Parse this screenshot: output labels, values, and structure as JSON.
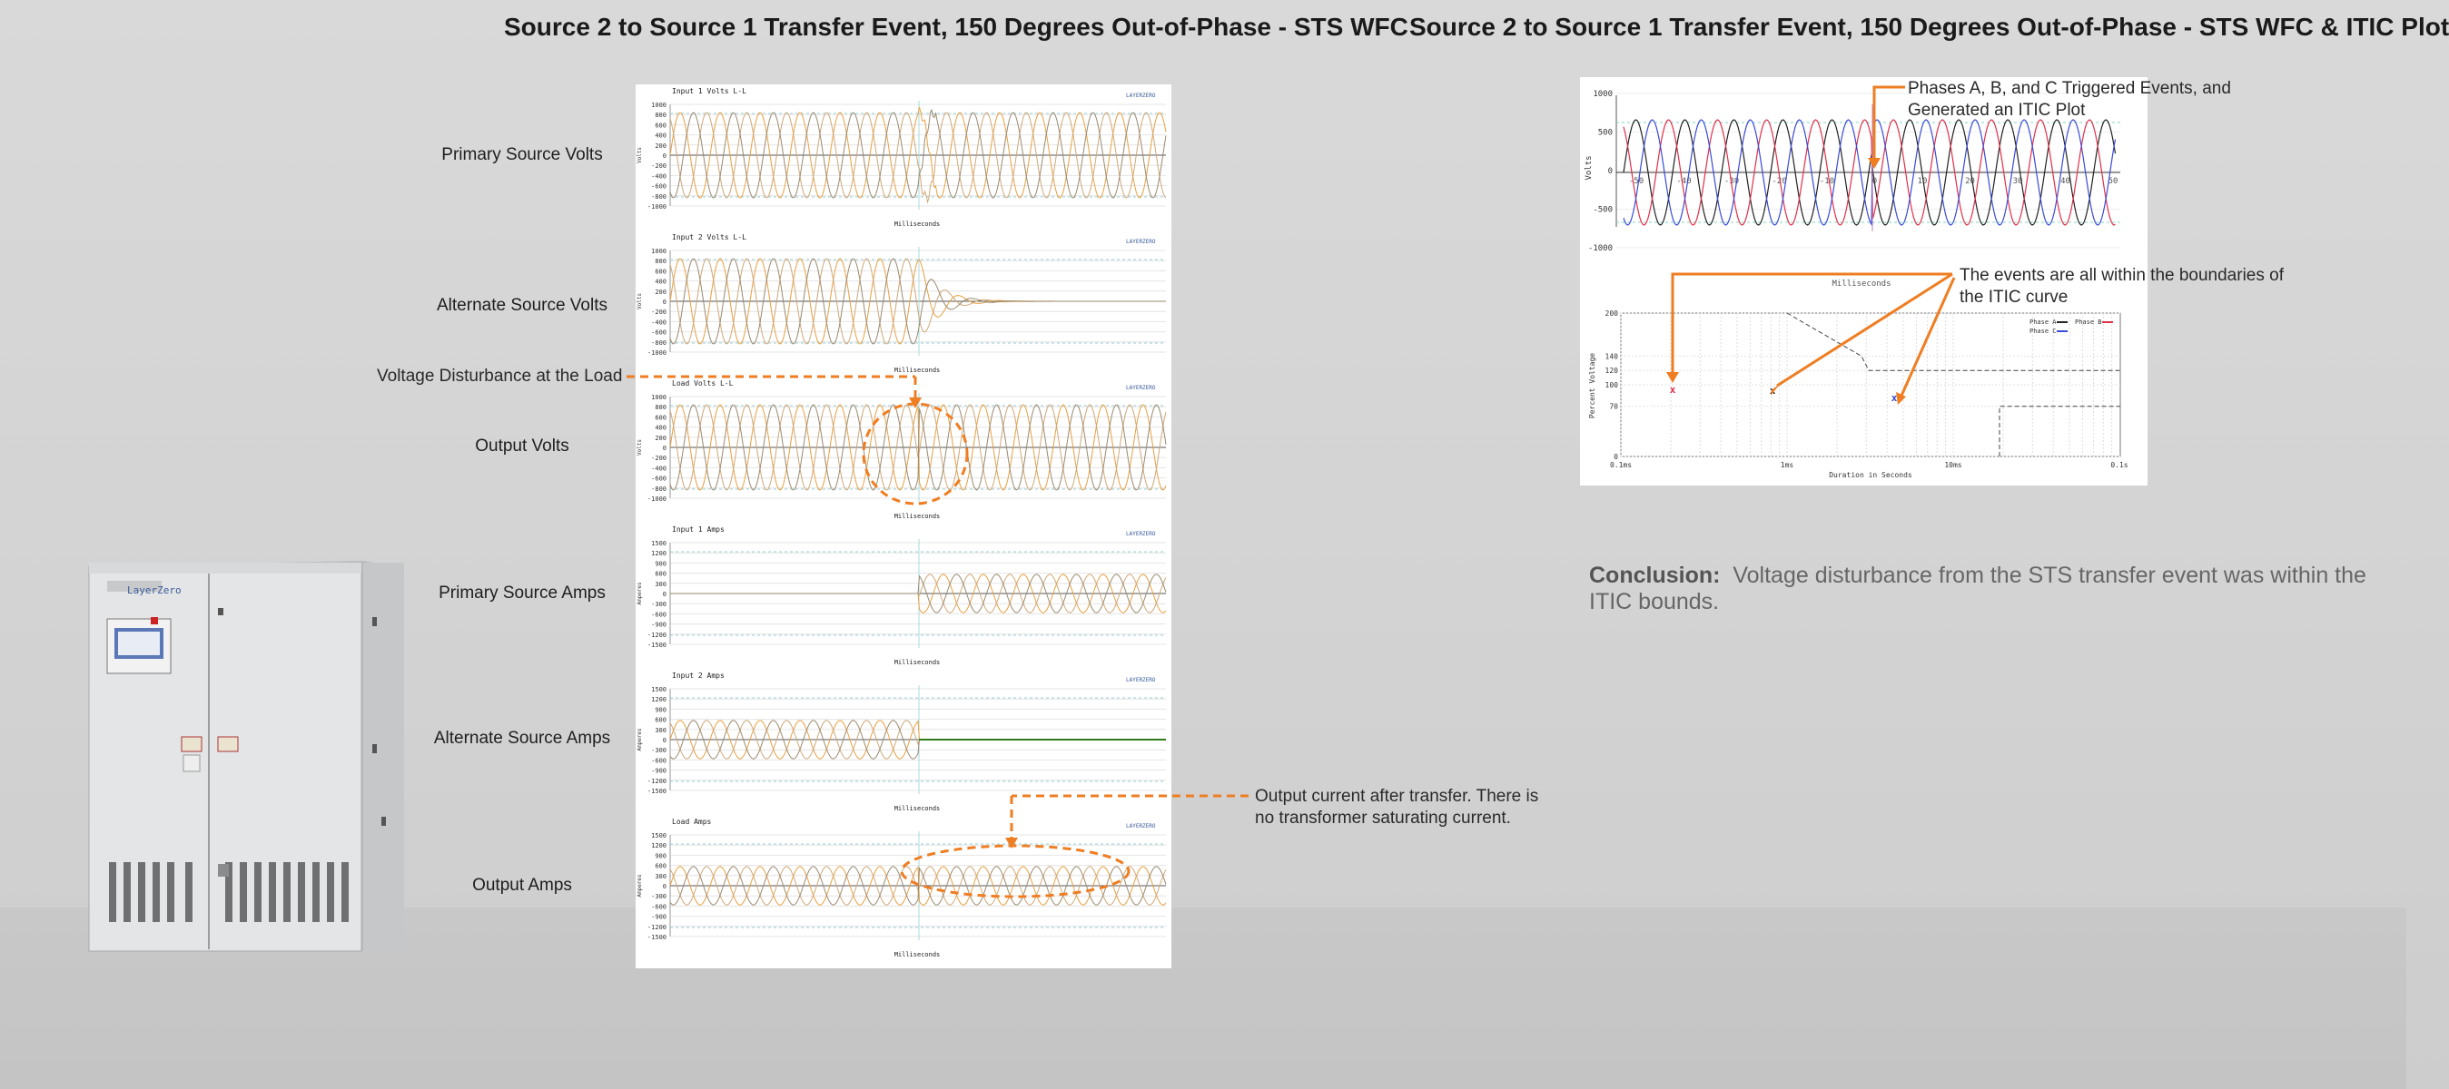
{
  "titles": {
    "left": "Source 2 to Source 1 Transfer Event, 150 Degrees Out-of-Phase  - STS WFC",
    "right": "Source 2 to Source 1 Transfer Event, 150 Degrees Out-of-Phase - STS WFC & ITIC Plot"
  },
  "row_labels": [
    "Primary Source Volts",
    "Alternate Source Volts",
    "Output Volts",
    "Primary Source Amps",
    "Alternate Source Amps",
    "Output Amps"
  ],
  "waveforms": [
    {
      "title": "Input 1 Volts L-L",
      "xlabel": "Milliseconds",
      "yticks": [
        "1000",
        "800",
        "600",
        "400",
        "200",
        "0",
        "-200",
        "-400",
        "-600",
        "-800",
        "-1000"
      ],
      "ylabel": "Volts"
    },
    {
      "title": "Input 2 Volts L-L",
      "xlabel": "Milliseconds",
      "yticks": [
        "1000",
        "800",
        "600",
        "400",
        "200",
        "0",
        "-200",
        "-400",
        "-600",
        "-800",
        "-1000"
      ],
      "ylabel": "Volts"
    },
    {
      "title": "Load Volts L-L",
      "xlabel": "Milliseconds",
      "yticks": [
        "1000",
        "800",
        "600",
        "400",
        "200",
        "0",
        "-200",
        "-400",
        "-600",
        "-800",
        "-1000"
      ],
      "ylabel": "Volts"
    },
    {
      "title": "Input 1 Amps",
      "xlabel": "Milliseconds",
      "yticks": [
        "1500",
        "1200",
        "900",
        "600",
        "300",
        "0",
        "-300",
        "-600",
        "-900",
        "-1200",
        "-1500"
      ],
      "ylabel": "Amperes"
    },
    {
      "title": "Input 2 Amps",
      "xlabel": "Milliseconds",
      "yticks": [
        "1500",
        "1200",
        "900",
        "600",
        "300",
        "0",
        "-300",
        "-600",
        "-900",
        "-1200",
        "-1500"
      ],
      "ylabel": "Amperes"
    },
    {
      "title": "Load Amps",
      "xlabel": "Milliseconds",
      "yticks": [
        "1500",
        "1200",
        "900",
        "600",
        "300",
        "0",
        "-300",
        "-600",
        "-900",
        "-1200",
        "-1500"
      ],
      "ylabel": "Amperes"
    }
  ],
  "annotations": {
    "voltage_disturbance": "Voltage Disturbance at the Load",
    "output_current": "Output current after transfer.  There is no transformer saturating current.",
    "phases_triggered": "Phases A, B, and C Triggered Events, and Generated an ITIC Plot",
    "within_bounds": "The events are all within the boundaries of the ITIC curve"
  },
  "itic_wave": {
    "yticks": [
      "1000",
      "500",
      "0",
      "-500",
      "-1000"
    ],
    "xticks": [
      "-50",
      "-40",
      "-30",
      "-20",
      "-10",
      "0",
      "10",
      "20",
      "30",
      "40",
      "50"
    ],
    "ylabel": "Volts",
    "xlabel": "Milliseconds"
  },
  "itic_curve": {
    "yticks": [
      "200",
      "140",
      "120",
      "100",
      "70",
      "0"
    ],
    "xticks": [
      "0.1ms",
      "1ms",
      "10ms",
      "0.1s"
    ],
    "ylabel": "Percent Voltage",
    "xlabel": "Duration in Seconds",
    "legend": [
      "Phase A",
      "Phase B",
      "Phase C"
    ],
    "markers": [
      "x",
      "x",
      "x"
    ]
  },
  "conclusion": {
    "label": "Conclusion:",
    "text": "Voltage disturbance from the STS transfer event was within the ITIC bounds."
  },
  "colors": {
    "accent": "#ef7d22",
    "phase_a": "#222222",
    "phase_b": "#e0304a",
    "phase_c": "#3a4ad8",
    "wave1": "#e8a040",
    "wave2": "#cfa878",
    "wave3": "#9a8a70",
    "green": "#2f7a1a"
  },
  "cabinet": {
    "brand": "LayerZero"
  }
}
